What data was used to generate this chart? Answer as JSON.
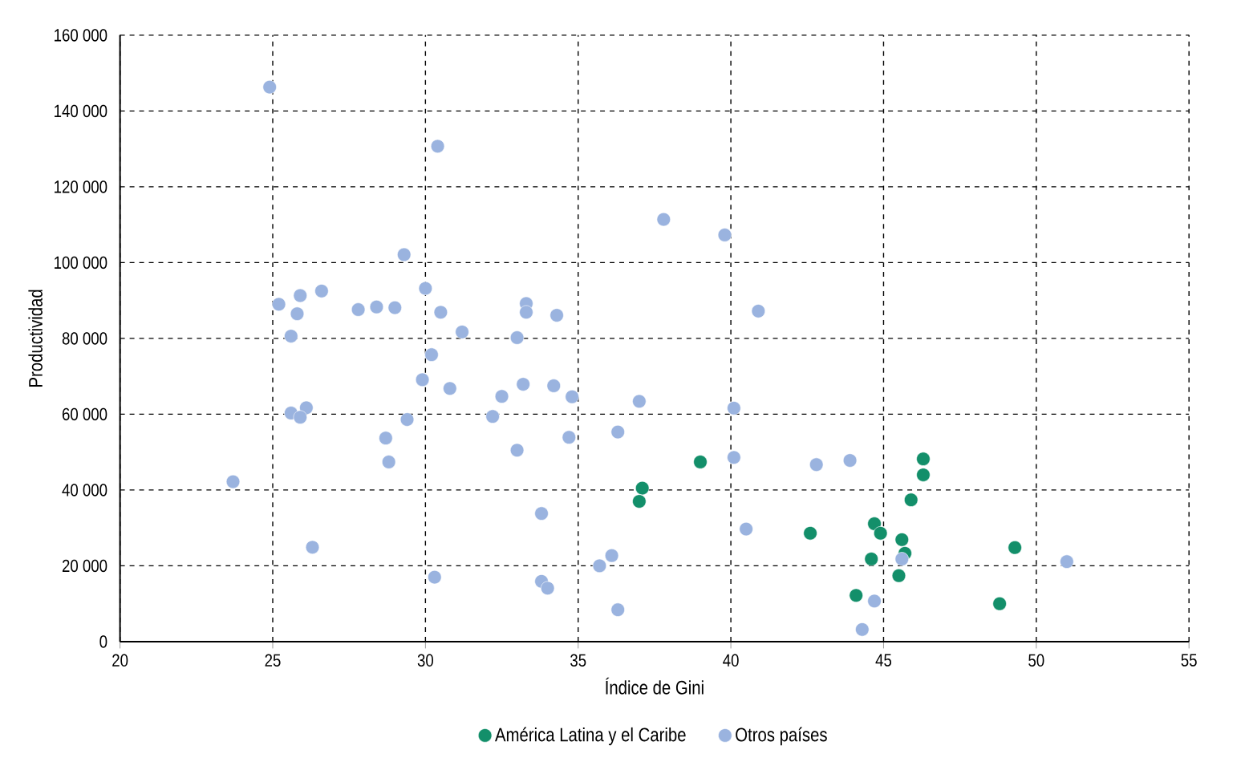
{
  "chart_data": {
    "type": "scatter",
    "xlabel": "Índice de Gini",
    "ylabel": "Productividad",
    "xlim": [
      20,
      55
    ],
    "xticks": [
      20,
      25,
      30,
      35,
      40,
      45,
      50,
      55
    ],
    "ylim": [
      0,
      160000
    ],
    "yticks": [
      0,
      {
        "value": 20000,
        "label": "20 000"
      },
      {
        "value": 40000,
        "label": "40 000"
      },
      {
        "value": 60000,
        "label": "60 000"
      },
      {
        "value": 80000,
        "label": "80 000"
      },
      {
        "value": 100000,
        "label": "100 000"
      },
      {
        "value": 120000,
        "label": "120 000"
      },
      {
        "value": 140000,
        "label": "140 000"
      },
      {
        "value": 160000,
        "label": "160 000"
      }
    ],
    "grid": true,
    "legend": "bottom",
    "series": [
      {
        "name": "América Latina y el Caribe",
        "color": "#138f6a",
        "x": [
          39.0,
          37.1,
          37.0,
          42.6,
          44.7,
          44.9,
          44.6,
          45.6,
          45.7,
          45.5,
          44.1,
          46.3,
          46.3,
          45.9,
          49.3,
          48.8
        ],
        "values": [
          47400,
          40500,
          37000,
          28600,
          31100,
          28600,
          21800,
          26900,
          23300,
          17400,
          12200,
          48200,
          44000,
          37400,
          24800,
          10000
        ]
      },
      {
        "name": "Otros países",
        "color": "#9ab3df",
        "x": [
          37.8,
          39.8,
          40.9,
          37.0,
          40.1,
          40.1,
          42.8,
          43.9,
          40.5,
          45.6,
          44.7,
          44.3,
          51.0,
          24.9,
          30.4,
          29.3,
          25.2,
          25.9,
          25.8,
          26.6,
          25.6,
          27.8,
          28.4,
          29.0,
          30.0,
          30.5,
          31.2,
          33.0,
          33.3,
          33.3,
          34.3,
          30.2,
          29.9,
          30.8,
          32.5,
          33.2,
          34.2,
          34.8,
          25.6,
          26.1,
          25.9,
          29.4,
          28.7,
          28.8,
          32.2,
          33.0,
          34.7,
          36.3,
          23.7,
          26.3,
          30.3,
          33.8,
          33.8,
          34.0,
          35.7,
          36.1,
          36.3
        ],
        "values": [
          111400,
          107300,
          87200,
          63400,
          61600,
          48600,
          46700,
          47800,
          29700,
          21800,
          10700,
          3200,
          21100,
          146300,
          130700,
          102100,
          89000,
          91300,
          86500,
          92500,
          80600,
          87600,
          88300,
          88100,
          93200,
          86900,
          81700,
          80200,
          89200,
          86900,
          86100,
          75700,
          69100,
          66800,
          64700,
          67900,
          67500,
          64600,
          60300,
          61700,
          59200,
          58600,
          53700,
          47400,
          59400,
          50500,
          53900,
          55300,
          42200,
          24900,
          17000,
          33800,
          15900,
          14100,
          20000,
          22700,
          8400
        ]
      }
    ]
  }
}
